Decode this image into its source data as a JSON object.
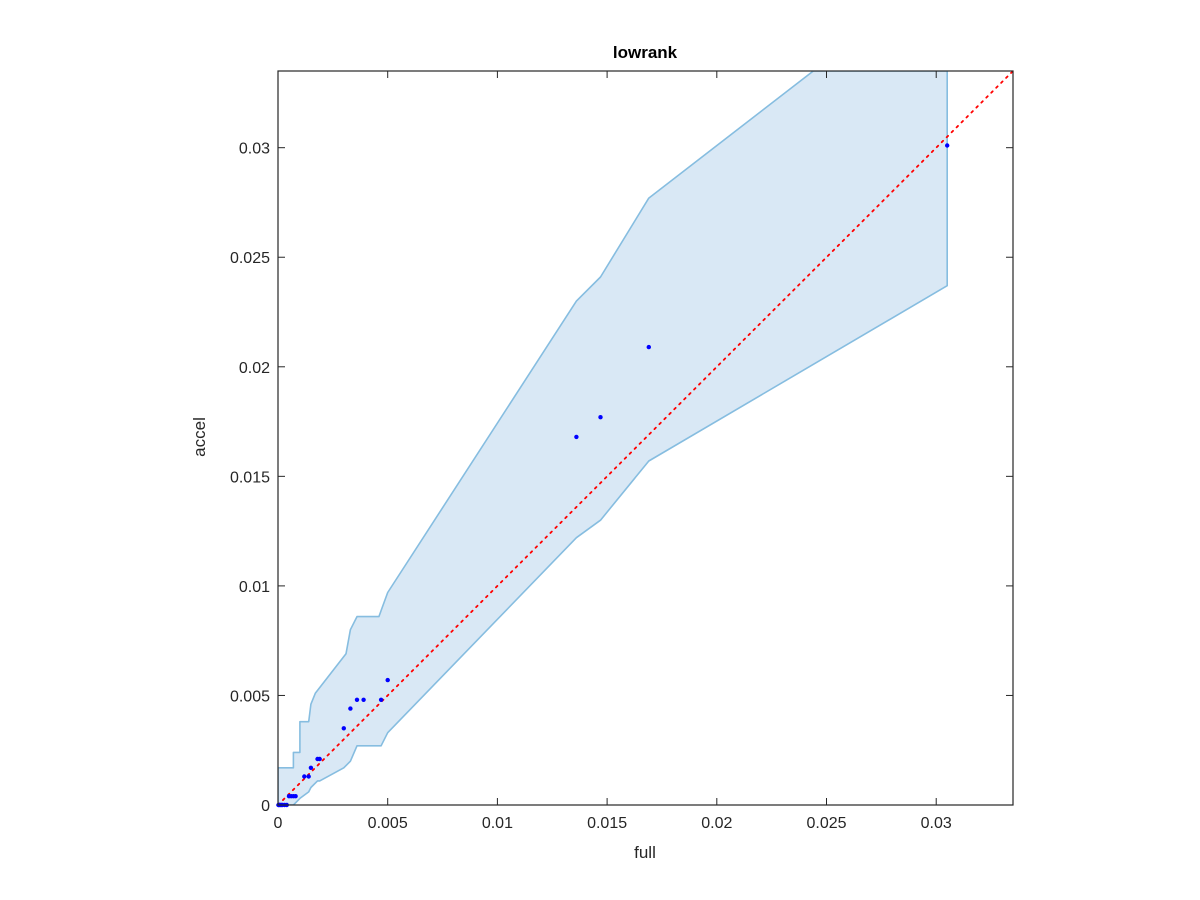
{
  "chart_data": {
    "type": "scatter",
    "title": "lowrank",
    "xlabel": "full",
    "ylabel": "accel",
    "xlim": [
      0,
      0.0335
    ],
    "ylim": [
      0,
      0.0335
    ],
    "xticks": [
      "0",
      "0.005",
      "0.01",
      "0.015",
      "0.02",
      "0.025",
      "0.03"
    ],
    "yticks": [
      "0",
      "0.005",
      "0.01",
      "0.015",
      "0.02",
      "0.025",
      "0.03"
    ],
    "xtick_values": [
      0,
      0.005,
      0.01,
      0.015,
      0.02,
      0.025,
      0.03
    ],
    "ytick_values": [
      0,
      0.005,
      0.01,
      0.015,
      0.02,
      0.025,
      0.03
    ],
    "grid": false,
    "colors": {
      "points": "#0000ff",
      "band_fill": "#d9e8f5",
      "band_edge": "#86bde0",
      "reference_line": "#ff0000",
      "axes": "#262626"
    },
    "points": {
      "x": [
        2e-05,
        5e-05,
        0.0001,
        0.00015,
        0.0002,
        0.0003,
        0.0004,
        0.0005,
        0.0006,
        0.0007,
        0.0008,
        0.0012,
        0.0014,
        0.0015,
        0.0018,
        0.0019,
        0.003,
        0.0033,
        0.0036,
        0.0039,
        0.0047,
        0.005,
        0.0136,
        0.0147,
        0.0169,
        0.0305
      ],
      "y": [
        0.0,
        0.0,
        0.0,
        0.0,
        0.0,
        0.0,
        0.0,
        0.0004,
        0.0004,
        0.0004,
        0.0004,
        0.0013,
        0.0013,
        0.0017,
        0.0021,
        0.0021,
        0.0035,
        0.0044,
        0.0048,
        0.0048,
        0.0048,
        0.0057,
        0.0168,
        0.0177,
        0.0209,
        0.0301
      ]
    },
    "band_upper": {
      "x": [
        0.0,
        0.0007,
        0.0007,
        0.001,
        0.001,
        0.0014,
        0.0015,
        0.0017,
        0.0031,
        0.0033,
        0.0036,
        0.0046,
        0.005,
        0.0136,
        0.0147,
        0.0169,
        0.0244,
        0.0305
      ],
      "y": [
        0.0017,
        0.0017,
        0.0024,
        0.0024,
        0.0038,
        0.0038,
        0.0046,
        0.0051,
        0.0069,
        0.008,
        0.0086,
        0.0086,
        0.0097,
        0.023,
        0.0241,
        0.0277,
        0.0335,
        0.0335
      ]
    },
    "band_lower": {
      "x": [
        0.0305,
        0.0169,
        0.0147,
        0.0136,
        0.005,
        0.0047,
        0.0036,
        0.0033,
        0.003,
        0.0019,
        0.0018,
        0.0015,
        0.0014,
        0.001,
        0.0008,
        0.0007,
        0.0005,
        0.0003,
        0.0
      ],
      "y": [
        0.0237,
        0.0157,
        0.013,
        0.0122,
        0.0033,
        0.0027,
        0.0027,
        0.002,
        0.0017,
        0.0011,
        0.0011,
        0.0008,
        0.0006,
        0.0003,
        0.0001,
        0.0,
        0.0,
        0.0,
        0.0
      ]
    },
    "reference_line": {
      "x": [
        0,
        0.0335
      ],
      "y": [
        0,
        0.0335
      ],
      "style": "dotted"
    }
  }
}
